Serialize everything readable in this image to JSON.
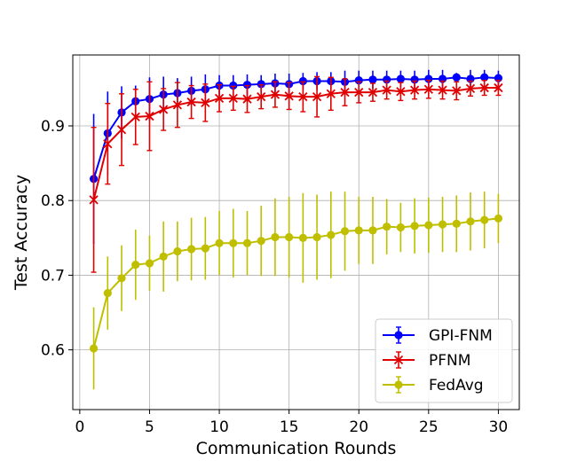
{
  "chart_data": {
    "type": "line",
    "title": "",
    "xlabel": "Communication Rounds",
    "ylabel": "Test Accuracy",
    "xlim": [
      -0.5,
      31.5
    ],
    "ylim": [
      0.52,
      0.995
    ],
    "xticks": [
      0,
      5,
      10,
      15,
      20,
      25,
      30
    ],
    "yticks": [
      0.6,
      0.7,
      0.8,
      0.9
    ],
    "grid": true,
    "legend_position": "lower-right",
    "x": [
      1,
      2,
      3,
      4,
      5,
      6,
      7,
      8,
      9,
      10,
      11,
      12,
      13,
      14,
      15,
      16,
      17,
      18,
      19,
      20,
      21,
      22,
      23,
      24,
      25,
      26,
      27,
      28,
      29,
      30
    ],
    "series": [
      {
        "name": "GPI-FNM",
        "color": "#0000ff",
        "marker": "circle",
        "values": [
          0.829,
          0.89,
          0.918,
          0.933,
          0.936,
          0.942,
          0.944,
          0.947,
          0.949,
          0.954,
          0.954,
          0.955,
          0.956,
          0.957,
          0.956,
          0.96,
          0.96,
          0.96,
          0.959,
          0.961,
          0.962,
          0.962,
          0.963,
          0.962,
          0.963,
          0.963,
          0.965,
          0.963,
          0.965,
          0.964
        ],
        "errors": [
          0.087,
          0.056,
          0.035,
          0.021,
          0.029,
          0.024,
          0.02,
          0.019,
          0.02,
          0.014,
          0.014,
          0.014,
          0.012,
          0.013,
          0.014,
          0.011,
          0.012,
          0.012,
          0.015,
          0.013,
          0.012,
          0.012,
          0.011,
          0.012,
          0.012,
          0.012,
          0.006,
          0.012,
          0.01,
          0.01
        ]
      },
      {
        "name": "PFNM",
        "color": "#e00000",
        "marker": "x",
        "values": [
          0.801,
          0.876,
          0.895,
          0.912,
          0.913,
          0.922,
          0.928,
          0.932,
          0.931,
          0.937,
          0.937,
          0.936,
          0.939,
          0.942,
          0.94,
          0.939,
          0.939,
          0.943,
          0.945,
          0.945,
          0.945,
          0.948,
          0.946,
          0.948,
          0.949,
          0.948,
          0.947,
          0.95,
          0.951,
          0.951
        ],
        "errors": [
          0.097,
          0.054,
          0.048,
          0.037,
          0.046,
          0.028,
          0.03,
          0.022,
          0.025,
          0.018,
          0.016,
          0.018,
          0.016,
          0.017,
          0.018,
          0.02,
          0.027,
          0.022,
          0.018,
          0.014,
          0.012,
          0.012,
          0.012,
          0.012,
          0.012,
          0.012,
          0.012,
          0.01,
          0.01,
          0.01
        ]
      },
      {
        "name": "FedAvg",
        "color": "#bfbf00",
        "marker": "circle",
        "values": [
          0.602,
          0.676,
          0.696,
          0.714,
          0.716,
          0.725,
          0.732,
          0.735,
          0.736,
          0.743,
          0.743,
          0.743,
          0.746,
          0.751,
          0.751,
          0.75,
          0.751,
          0.754,
          0.759,
          0.76,
          0.76,
          0.765,
          0.764,
          0.766,
          0.767,
          0.768,
          0.769,
          0.772,
          0.774,
          0.776
        ],
        "errors": [
          0.055,
          0.049,
          0.044,
          0.047,
          0.037,
          0.047,
          0.04,
          0.042,
          0.042,
          0.043,
          0.046,
          0.043,
          0.047,
          0.052,
          0.054,
          0.06,
          0.057,
          0.058,
          0.053,
          0.045,
          0.045,
          0.037,
          0.033,
          0.037,
          0.037,
          0.037,
          0.038,
          0.039,
          0.038,
          0.033
        ]
      }
    ]
  }
}
